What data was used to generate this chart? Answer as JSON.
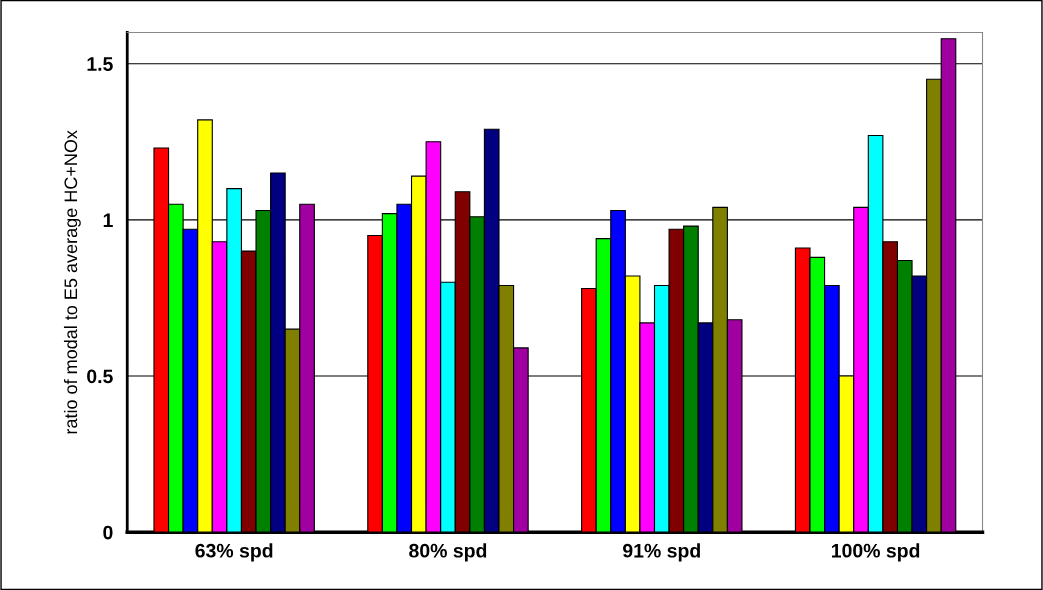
{
  "chart_data": {
    "type": "bar",
    "ylabel": "ratio of modal to E5 average HC+NOx",
    "categories": [
      "63% spd",
      "80% spd",
      "91% spd",
      "100% spd"
    ],
    "series": [
      {
        "color": "#ff0000",
        "values": [
          1.23,
          0.95,
          0.78,
          0.91
        ]
      },
      {
        "color": "#00ff00",
        "values": [
          1.05,
          1.02,
          0.94,
          0.88
        ]
      },
      {
        "color": "#0000ff",
        "values": [
          0.97,
          1.05,
          1.03,
          0.79
        ]
      },
      {
        "color": "#ffff00",
        "values": [
          1.32,
          1.14,
          0.82,
          0.5
        ]
      },
      {
        "color": "#ff00ff",
        "values": [
          0.93,
          1.25,
          0.67,
          1.04
        ]
      },
      {
        "color": "#00ffff",
        "values": [
          1.1,
          0.8,
          0.79,
          1.27
        ]
      },
      {
        "color": "#800000",
        "values": [
          0.9,
          1.09,
          0.97,
          0.93
        ]
      },
      {
        "color": "#008000",
        "values": [
          1.03,
          1.01,
          0.98,
          0.87
        ]
      },
      {
        "color": "#000080",
        "values": [
          1.15,
          1.29,
          0.67,
          0.82
        ]
      },
      {
        "color": "#808000",
        "values": [
          0.65,
          0.79,
          1.04,
          1.45
        ]
      },
      {
        "color": "#a000a0",
        "values": [
          1.05,
          0.59,
          0.68,
          1.58
        ]
      }
    ],
    "ylim": [
      0,
      1.6
    ],
    "yticks": [
      0,
      0.5,
      1,
      1.5
    ],
    "grid": "y"
  }
}
